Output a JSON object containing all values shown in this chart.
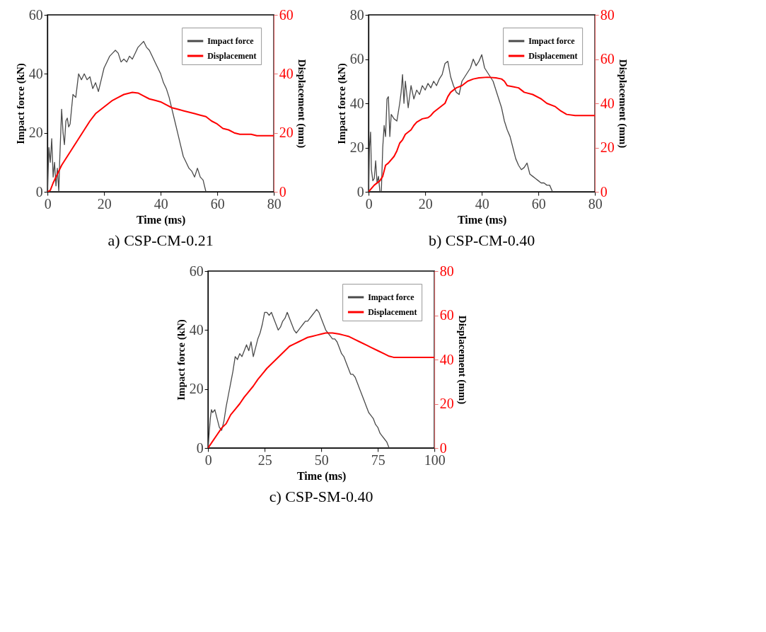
{
  "chart_data": [
    {
      "type": "line",
      "title": "a) CSP-CM-0.21",
      "xlabel": "Time (ms)",
      "ylabel": "Impact force (kN)",
      "y2label": "Displacement (mm)",
      "xlim": [
        0,
        80
      ],
      "xticks": [
        0,
        20,
        40,
        60,
        80
      ],
      "ylim": [
        0,
        60
      ],
      "yticks": [
        0,
        20,
        40,
        60
      ],
      "y2lim": [
        0,
        60
      ],
      "y2ticks": [
        0,
        20,
        40,
        60
      ],
      "legend": "top right",
      "series": [
        {
          "name": "Impact force",
          "color": "#4a4a4a",
          "x": [
            0,
            0.5,
            1,
            1.5,
            2,
            2.5,
            3,
            3.5,
            4,
            4.3,
            5,
            5.5,
            6,
            6.5,
            7,
            7.5,
            8,
            9,
            10,
            11,
            12,
            13,
            14,
            15,
            16,
            17,
            18,
            19,
            20,
            21,
            22,
            23,
            24,
            25,
            26,
            27,
            28,
            29,
            30,
            31,
            32,
            33,
            34,
            35,
            36,
            37,
            38,
            39,
            40,
            41,
            42,
            43,
            44,
            45,
            46,
            47,
            48,
            49,
            50,
            51,
            52,
            53,
            54,
            55,
            56
          ],
          "values": [
            0,
            15,
            10,
            18,
            5,
            10,
            2,
            8,
            0,
            10,
            28,
            20,
            16,
            24,
            25,
            22,
            23,
            33,
            32,
            40,
            38,
            40,
            38,
            39,
            35,
            37,
            34,
            38,
            42,
            44,
            46,
            47,
            48,
            47,
            44,
            45,
            44,
            46,
            45,
            47,
            49,
            50,
            51,
            49,
            48,
            46,
            44,
            42,
            40,
            37,
            35,
            32,
            28,
            24,
            20,
            16,
            12,
            10,
            8,
            7,
            5,
            8,
            5,
            4,
            0
          ]
        },
        {
          "name": "Displacement",
          "color": "#ff0000",
          "axis": "y2",
          "x": [
            0,
            1,
            2,
            3,
            5,
            7,
            9,
            11,
            13,
            15,
            17,
            19,
            21,
            23,
            25,
            27,
            29,
            30,
            32,
            34,
            36,
            38,
            40,
            42,
            44,
            46,
            48,
            50,
            52,
            54,
            56,
            58,
            60,
            62,
            64,
            66,
            68,
            70,
            72,
            74,
            76,
            78,
            80
          ],
          "values": [
            0,
            0.5,
            3,
            5,
            9,
            12,
            15,
            18,
            21,
            24,
            26.5,
            28,
            29.5,
            31,
            32,
            33,
            33.5,
            33.7,
            33.5,
            32.5,
            31.5,
            31,
            30.5,
            29.5,
            28.5,
            28,
            27.5,
            27,
            26.5,
            26,
            25.5,
            24,
            23,
            21.5,
            21,
            20,
            19.5,
            19.5,
            19.5,
            19,
            19,
            19,
            19
          ]
        }
      ]
    },
    {
      "type": "line",
      "title": "b) CSP-CM-0.40",
      "xlabel": "Time (ms)",
      "ylabel": "Impact force (kN)",
      "y2label": "Displacement (mm)",
      "xlim": [
        0,
        80
      ],
      "xticks": [
        0,
        20,
        40,
        60,
        80
      ],
      "ylim": [
        0,
        80
      ],
      "yticks": [
        0,
        20,
        40,
        60,
        80
      ],
      "y2lim": [
        0,
        80
      ],
      "y2ticks": [
        0,
        20,
        40,
        60,
        80
      ],
      "legend": "top right",
      "series": [
        {
          "name": "Impact force",
          "color": "#4a4a4a",
          "x": [
            0,
            0.3,
            0.7,
            1,
            1.5,
            2,
            2.5,
            3,
            3.5,
            4,
            4.5,
            5,
            5.5,
            6,
            6.5,
            7,
            7.5,
            8,
            9,
            10,
            11,
            11.5,
            12,
            12.5,
            13,
            14,
            15,
            16,
            17,
            18,
            19,
            20,
            21,
            22,
            23,
            24,
            25,
            26,
            27,
            28,
            29,
            30,
            31,
            32,
            33,
            34,
            35,
            36,
            37,
            38,
            39,
            40,
            41,
            42,
            43,
            44,
            45,
            46,
            47,
            48,
            49,
            50,
            51,
            52,
            53,
            54,
            55,
            56,
            57,
            58,
            59,
            60,
            61,
            62,
            63,
            64,
            65
          ],
          "values": [
            0,
            20,
            27,
            10,
            5,
            6,
            14,
            4,
            7,
            0,
            0,
            20,
            30,
            25,
            42,
            43,
            25,
            35,
            33,
            32,
            40,
            45,
            53,
            40,
            50,
            38,
            48,
            42,
            46,
            44,
            48,
            46,
            49,
            47,
            50,
            48,
            51,
            53,
            58,
            59,
            52,
            48,
            45,
            44,
            50,
            52,
            54,
            56,
            60,
            57,
            59,
            62,
            56,
            54,
            52,
            50,
            46,
            42,
            38,
            32,
            28,
            25,
            20,
            15,
            12,
            10,
            11,
            13,
            8,
            7,
            6,
            5,
            4,
            4,
            3,
            3,
            0
          ]
        },
        {
          "name": "Displacement",
          "color": "#ff0000",
          "axis": "y2",
          "x": [
            0,
            2,
            4,
            5,
            6,
            7,
            9,
            10,
            11,
            12,
            13,
            15,
            16,
            17,
            19,
            21,
            22,
            23,
            25,
            27,
            28,
            29,
            31,
            33,
            35,
            37,
            39,
            42,
            45,
            47,
            48,
            49,
            51,
            53,
            55,
            58,
            61,
            63,
            66,
            68,
            70,
            73,
            76,
            80
          ],
          "values": [
            0,
            3,
            5,
            7,
            12,
            13,
            16,
            18.5,
            22,
            23.5,
            26,
            28,
            30,
            31.5,
            33,
            33.5,
            34.5,
            36,
            38,
            40,
            43,
            45,
            47,
            48,
            50,
            51,
            51.5,
            51.8,
            51.5,
            51,
            50,
            48,
            47.5,
            47,
            45,
            44,
            42,
            40,
            38.5,
            36.5,
            35,
            34.5,
            34.5,
            34.5
          ]
        }
      ]
    },
    {
      "type": "line",
      "title": "c) CSP-SM-0.40",
      "xlabel": "Time (ms)",
      "ylabel": "Impact force (kN)",
      "y2label": "Displacement (mm)",
      "xlim": [
        0,
        100
      ],
      "xticks": [
        0,
        25,
        50,
        75,
        100
      ],
      "ylim": [
        0,
        60
      ],
      "yticks": [
        0,
        20,
        40,
        60
      ],
      "y2lim": [
        0,
        80
      ],
      "y2ticks": [
        0,
        20,
        40,
        60,
        80
      ],
      "legend": "top right",
      "series": [
        {
          "name": "Impact force",
          "color": "#4a4a4a",
          "x": [
            0,
            0.5,
            1,
            1.5,
            2,
            3,
            4,
            5,
            6,
            7,
            8,
            9,
            10,
            11,
            12,
            13,
            14,
            15,
            16,
            17,
            18,
            19,
            20,
            21,
            22,
            23,
            24,
            25,
            26,
            27,
            28,
            29,
            30,
            31,
            32,
            33,
            34,
            35,
            36,
            37,
            38,
            39,
            40,
            41,
            42,
            43,
            44,
            45,
            46,
            47,
            48,
            49,
            50,
            51,
            52,
            53,
            54,
            55,
            56,
            57,
            58,
            59,
            60,
            61,
            62,
            63,
            64,
            65,
            66,
            67,
            68,
            69,
            70,
            71,
            72,
            73,
            74,
            75,
            76,
            77,
            78,
            79,
            80
          ],
          "values": [
            0,
            5,
            10,
            13,
            12,
            13,
            10,
            7,
            6,
            9,
            14,
            18,
            22,
            26,
            31,
            30,
            32,
            31,
            33,
            35,
            33,
            36,
            31,
            34,
            37,
            39,
            42,
            46,
            46,
            45,
            46,
            44,
            42,
            40,
            41,
            43,
            44,
            46,
            44,
            42,
            40,
            39,
            40,
            41,
            42,
            43,
            43,
            44,
            45,
            46,
            47,
            46,
            44,
            42,
            40,
            39,
            38,
            37,
            37,
            36,
            34,
            32,
            31,
            29,
            27,
            25,
            25,
            24,
            22,
            20,
            18,
            16,
            14,
            12,
            11,
            10,
            8,
            7,
            5,
            4,
            3,
            2,
            0
          ]
        },
        {
          "name": "Displacement",
          "color": "#ff0000",
          "axis": "y2",
          "x": [
            0,
            2,
            4,
            6,
            8,
            10,
            12,
            14,
            16,
            18,
            20,
            22,
            24,
            26,
            28,
            30,
            32,
            34,
            36,
            38,
            40,
            42,
            44,
            46,
            48,
            50,
            52,
            55,
            58,
            60,
            62,
            65,
            67,
            70,
            72,
            75,
            78,
            80,
            82,
            85,
            90,
            95,
            100
          ],
          "values": [
            0,
            3,
            6,
            9,
            11,
            15,
            17.5,
            20,
            23,
            25.5,
            28,
            31,
            33.5,
            36,
            38,
            40,
            42,
            44,
            46,
            47,
            48,
            49,
            50,
            50.5,
            51,
            51.5,
            52,
            52,
            51.5,
            51,
            50.5,
            49,
            48,
            46.5,
            45.5,
            44,
            42.5,
            41.5,
            41,
            41,
            41,
            41,
            41
          ]
        }
      ]
    }
  ]
}
